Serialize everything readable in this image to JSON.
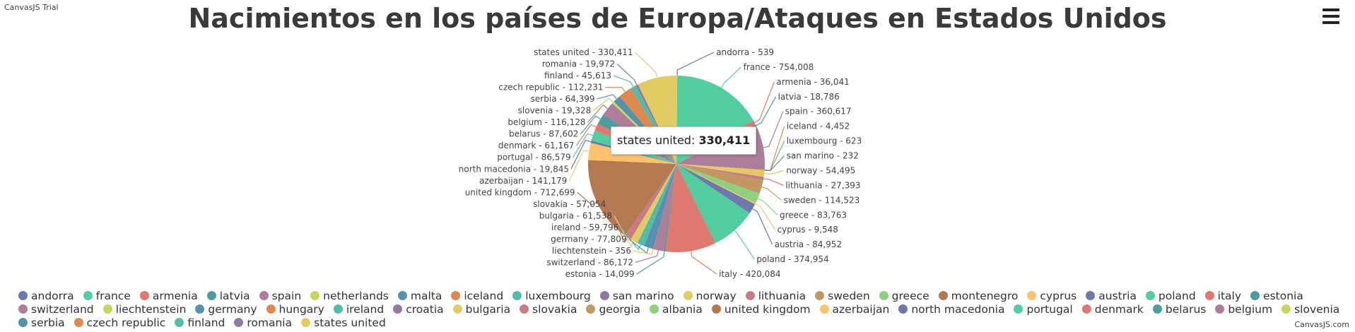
{
  "trial_label": "CanvasJS Trial",
  "credit_label": "CanvasJS.com",
  "menu_icon": "hamburger-menu-icon",
  "tooltip": {
    "label": "states united",
    "value": "330,411"
  },
  "chart_data": {
    "type": "pie",
    "title": "Nacimientos en los países de Europa/Ataques en Estados Unidos",
    "legend_position": "bottom",
    "slices": [
      {
        "label": "andorra",
        "value": 539,
        "value_label": "539",
        "color": "#6D78AD"
      },
      {
        "label": "france",
        "value": 754008,
        "value_label": "754,008",
        "color": "#51CDA0"
      },
      {
        "label": "armenia",
        "value": 36041,
        "value_label": "36,041",
        "color": "#DF7970"
      },
      {
        "label": "latvia",
        "value": 18786,
        "value_label": "18,786",
        "color": "#4C9CA0"
      },
      {
        "label": "spain",
        "value": 360617,
        "value_label": "360,617",
        "color": "#AE7D99"
      },
      {
        "label": "netherlands",
        "value": 0,
        "value_label": "",
        "color": "#C9D45C"
      },
      {
        "label": "malta",
        "value": 0,
        "value_label": "",
        "color": "#5592AD"
      },
      {
        "label": "iceland",
        "value": 4452,
        "value_label": "4,452",
        "color": "#DF874D"
      },
      {
        "label": "luxembourg",
        "value": 623,
        "value_label": "623",
        "color": "#52BCA8"
      },
      {
        "label": "san marino",
        "value": 232,
        "value_label": "232",
        "color": "#8E7AA3"
      },
      {
        "label": "norway",
        "value": 54495,
        "value_label": "54,495",
        "color": "#E3CB64"
      },
      {
        "label": "lithuania",
        "value": 27393,
        "value_label": "27,393",
        "color": "#C77B85"
      },
      {
        "label": "sweden",
        "value": 114523,
        "value_label": "114,523",
        "color": "#C39762"
      },
      {
        "label": "greece",
        "value": 83763,
        "value_label": "83,763",
        "color": "#8DD17E"
      },
      {
        "label": "montenegro",
        "value": 0,
        "value_label": "",
        "color": "#B57952"
      },
      {
        "label": "cyprus",
        "value": 9548,
        "value_label": "9,548",
        "color": "#FCC26C"
      },
      {
        "label": "austria",
        "value": 84952,
        "value_label": "84,952",
        "color": "#6D78AD"
      },
      {
        "label": "poland",
        "value": 374954,
        "value_label": "374,954",
        "color": "#51CDA0"
      },
      {
        "label": "italy",
        "value": 420084,
        "value_label": "420,084",
        "color": "#DF7970"
      },
      {
        "label": "estonia",
        "value": 14099,
        "value_label": "14,099",
        "color": "#4C9CA0"
      },
      {
        "label": "switzerland",
        "value": 86172,
        "value_label": "86,172",
        "color": "#AE7D99"
      },
      {
        "label": "liechtenstein",
        "value": 356,
        "value_label": "356",
        "color": "#C9D45C"
      },
      {
        "label": "germany",
        "value": 77809,
        "value_label": "77,809",
        "color": "#5592AD"
      },
      {
        "label": "hungary",
        "value": 0,
        "value_label": "",
        "color": "#DF874D"
      },
      {
        "label": "ireland",
        "value": 59796,
        "value_label": "59,796",
        "color": "#52BCA8"
      },
      {
        "label": "croatia",
        "value": 0,
        "value_label": "",
        "color": "#8E7AA3"
      },
      {
        "label": "bulgaria",
        "value": 61538,
        "value_label": "61,538",
        "color": "#E3CB64"
      },
      {
        "label": "slovakia",
        "value": 57054,
        "value_label": "57,054",
        "color": "#C77B85"
      },
      {
        "label": "georgia",
        "value": 0,
        "value_label": "",
        "color": "#C39762"
      },
      {
        "label": "albania",
        "value": 0,
        "value_label": "",
        "color": "#8DD17E"
      },
      {
        "label": "united kingdom",
        "value": 712699,
        "value_label": "712,699",
        "color": "#B57952"
      },
      {
        "label": "azerbaijan",
        "value": 141179,
        "value_label": "141,179",
        "color": "#FCC26C"
      },
      {
        "label": "north macedonia",
        "value": 19845,
        "value_label": "19,845",
        "color": "#6D78AD"
      },
      {
        "label": "portugal",
        "value": 86579,
        "value_label": "86,579",
        "color": "#51CDA0"
      },
      {
        "label": "denmark",
        "value": 61167,
        "value_label": "61,167",
        "color": "#DF7970"
      },
      {
        "label": "belarus",
        "value": 87602,
        "value_label": "87,602",
        "color": "#4C9CA0"
      },
      {
        "label": "belgium",
        "value": 116128,
        "value_label": "116,128",
        "color": "#AE7D99"
      },
      {
        "label": "slovenia",
        "value": 19328,
        "value_label": "19,328",
        "color": "#C9D45C"
      },
      {
        "label": "serbia",
        "value": 64399,
        "value_label": "64,399",
        "color": "#5592AD"
      },
      {
        "label": "czech republic",
        "value": 112231,
        "value_label": "112,231",
        "color": "#DF874D"
      },
      {
        "label": "finland",
        "value": 45613,
        "value_label": "45,613",
        "color": "#52BCA8"
      },
      {
        "label": "romania",
        "value": 19972,
        "value_label": "19,972",
        "color": "#8E7AA3"
      },
      {
        "label": "states united",
        "value": 330411,
        "value_label": "330,411",
        "color": "#E3CB64"
      }
    ]
  }
}
